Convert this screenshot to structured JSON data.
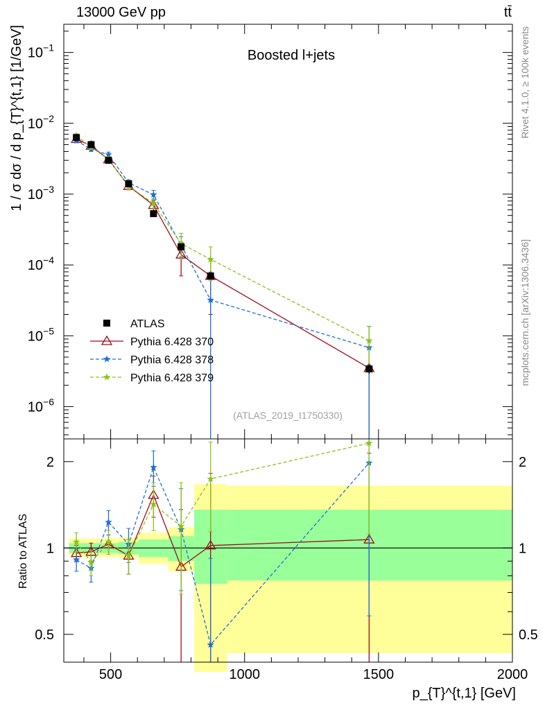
{
  "header": {
    "energy_label": "13000 GeV pp",
    "process_label": "tt̄",
    "plot_title": "Boosted l+jets",
    "watermark": "(ATLAS_2019_I1750330)",
    "side_top": "Rivet 4.1.0, ≥ 100k events",
    "side_bottom": "mcplots.cern.ch [arXiv:1306.3436]"
  },
  "chart_data": [
    {
      "type": "scatter",
      "panel": "main",
      "title": "Boosted l+jets",
      "ylabel": "1 / σ dσ / d p_{T}^{t,1} [1/GeV]",
      "yscale": "log",
      "ylim": [
        3.5e-07,
        0.25
      ],
      "xlim": [
        325,
        2000
      ],
      "y_ticks": [
        {
          "value": 1e-06,
          "base": "10",
          "exp": "−6"
        },
        {
          "value": 1e-05,
          "base": "10",
          "exp": "−5"
        },
        {
          "value": 0.0001,
          "base": "10",
          "exp": "−4"
        },
        {
          "value": 0.001,
          "base": "10",
          "exp": "−3"
        },
        {
          "value": 0.01,
          "base": "10",
          "exp": "−2"
        },
        {
          "value": 0.1,
          "base": "10",
          "exp": "−1"
        }
      ],
      "x": [
        372,
        427,
        492,
        567,
        660,
        763,
        873,
        1465
      ],
      "series": [
        {
          "name": "ATLAS",
          "style": "data",
          "color": "#000000",
          "values": [
            0.0063,
            0.005,
            0.003,
            0.0014,
            0.00053,
            0.00018,
            7e-05,
            3.4e-06
          ],
          "err": [
            0.0004,
            0.0003,
            0.0002,
            0.0001,
            4e-05,
            2e-05,
            8e-06,
            5e-07
          ]
        },
        {
          "name": "Pythia 6.428 370",
          "style": "triangle",
          "color": "#9e0b1c",
          "values": [
            0.006,
            0.0048,
            0.0031,
            0.0013,
            0.0007,
            0.00014,
            7e-05,
            3.5e-06
          ],
          "err": [
            0.0004,
            0.0003,
            0.0003,
            0.00015,
            0.00012,
            7e-05,
            5e-05,
            3.5e-06
          ]
        },
        {
          "name": "Pythia 6.428 378",
          "style": "star-dash",
          "color": "#1f6fd1",
          "values": [
            0.0057,
            0.0043,
            0.0036,
            0.00145,
            0.00098,
            0.00019,
            3.2e-05,
            6.8e-06
          ],
          "err": [
            0.0004,
            0.0003,
            0.0003,
            0.00015,
            0.00015,
            6e-05,
            3.2e-05,
            6.8e-06
          ]
        },
        {
          "name": "Pythia 6.428 379",
          "style": "star-dash",
          "color": "#8bc21a",
          "values": [
            0.0067,
            0.0046,
            0.0031,
            0.0013,
            0.00074,
            0.0002,
            0.00012,
            8.5e-06
          ],
          "err": [
            0.0004,
            0.0003,
            0.0003,
            0.00015,
            0.00012,
            8e-05,
            6e-05,
            5e-06
          ]
        }
      ]
    },
    {
      "type": "line",
      "panel": "ratio",
      "ylabel": "Ratio to ATLAS",
      "xlabel": "p_{T}^{t,1} [GeV]",
      "yscale": "log",
      "ylim": [
        0.4,
        2.4
      ],
      "xlim": [
        325,
        2000
      ],
      "y_ticks": [
        0.5,
        1,
        2
      ],
      "y_tick_labels": [
        "0.5",
        "1",
        "2"
      ],
      "x_ticks": [
        500,
        1000,
        1500,
        2000
      ],
      "x_tick_labels": [
        "500",
        "1000",
        "1500",
        "2000"
      ],
      "reference": 1,
      "bins": [
        {
          "lo": 345,
          "hi": 400,
          "green": [
            0.96,
            1.04
          ],
          "yellow": [
            0.93,
            1.08
          ]
        },
        {
          "lo": 400,
          "hi": 455,
          "green": [
            0.96,
            1.04
          ],
          "yellow": [
            0.93,
            1.08
          ]
        },
        {
          "lo": 455,
          "hi": 530,
          "green": [
            0.96,
            1.04
          ],
          "yellow": [
            0.93,
            1.08
          ]
        },
        {
          "lo": 530,
          "hi": 605,
          "green": [
            0.95,
            1.05
          ],
          "yellow": [
            0.92,
            1.09
          ]
        },
        {
          "lo": 605,
          "hi": 715,
          "green": [
            0.93,
            1.07
          ],
          "yellow": [
            0.88,
            1.13
          ]
        },
        {
          "lo": 715,
          "hi": 812,
          "green": [
            0.9,
            1.1
          ],
          "yellow": [
            0.83,
            1.18
          ]
        },
        {
          "lo": 812,
          "hi": 935,
          "green": [
            0.75,
            1.36
          ],
          "yellow": [
            0.37,
            1.67
          ]
        },
        {
          "lo": 935,
          "hi": 2000,
          "green": [
            0.77,
            1.36
          ],
          "yellow": [
            0.43,
            1.65
          ]
        }
      ],
      "x": [
        372,
        427,
        492,
        567,
        660,
        763,
        873,
        1465
      ],
      "series": [
        {
          "name": "Pythia 6.428 370",
          "style": "triangle",
          "color": "#9e0b1c",
          "values": [
            0.96,
            0.97,
            1.03,
            0.94,
            1.53,
            0.86,
            1.02,
            1.07
          ],
          "err": [
            0.06,
            0.07,
            0.08,
            0.13,
            0.25,
            0.5,
            0.8,
            1.07
          ]
        },
        {
          "name": "Pythia 6.428 378",
          "style": "star-dash",
          "color": "#1f6fd1",
          "values": [
            0.91,
            0.85,
            1.23,
            1.03,
            1.91,
            1.16,
            0.46,
            1.98
          ],
          "err": [
            0.08,
            0.09,
            0.12,
            0.14,
            0.27,
            0.45,
            0.46,
            1.4
          ]
        },
        {
          "name": "Pythia 6.428 379",
          "style": "star-dash",
          "color": "#8bc21a",
          "values": [
            1.05,
            0.89,
            1.05,
            0.94,
            1.42,
            1.19,
            1.74,
            2.32
          ],
          "err": [
            0.08,
            0.09,
            0.1,
            0.13,
            0.27,
            0.5,
            0.6,
            1.2
          ]
        }
      ]
    }
  ]
}
